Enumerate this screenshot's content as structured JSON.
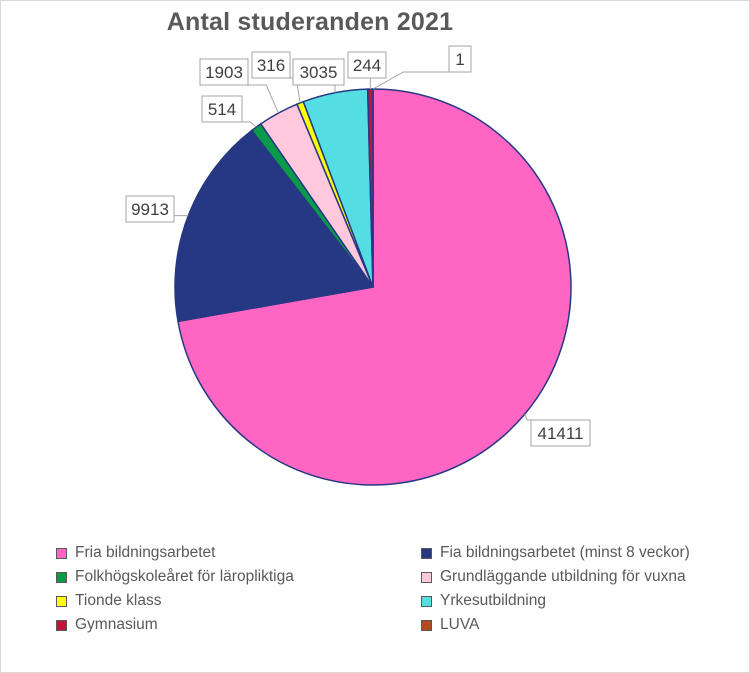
{
  "chart_data": {
    "type": "pie",
    "title": "Antal studeranden 2021",
    "categories": [
      "Fria bildningsarbetet",
      "Fia bildningsarbetet (minst 8 veckor)",
      "Folkhögskoleåret för läropliktiga",
      "Grundläggande utbildning för vuxna",
      "Tionde klass",
      "Yrkesutbildning",
      "Gymnasium",
      "LUVA"
    ],
    "values": [
      41411,
      9913,
      514,
      1903,
      316,
      3035,
      244,
      1
    ],
    "data_labels": [
      "41411",
      "9913",
      "514",
      "1903",
      "316",
      "3035",
      "244",
      "1"
    ],
    "colors": [
      "#ff66c4",
      "#263883",
      "#0a9b4a",
      "#ffc8dc",
      "#ffff00",
      "#55dde4",
      "#c0143c",
      "#b34a1c"
    ],
    "legend_position": "bottom"
  }
}
